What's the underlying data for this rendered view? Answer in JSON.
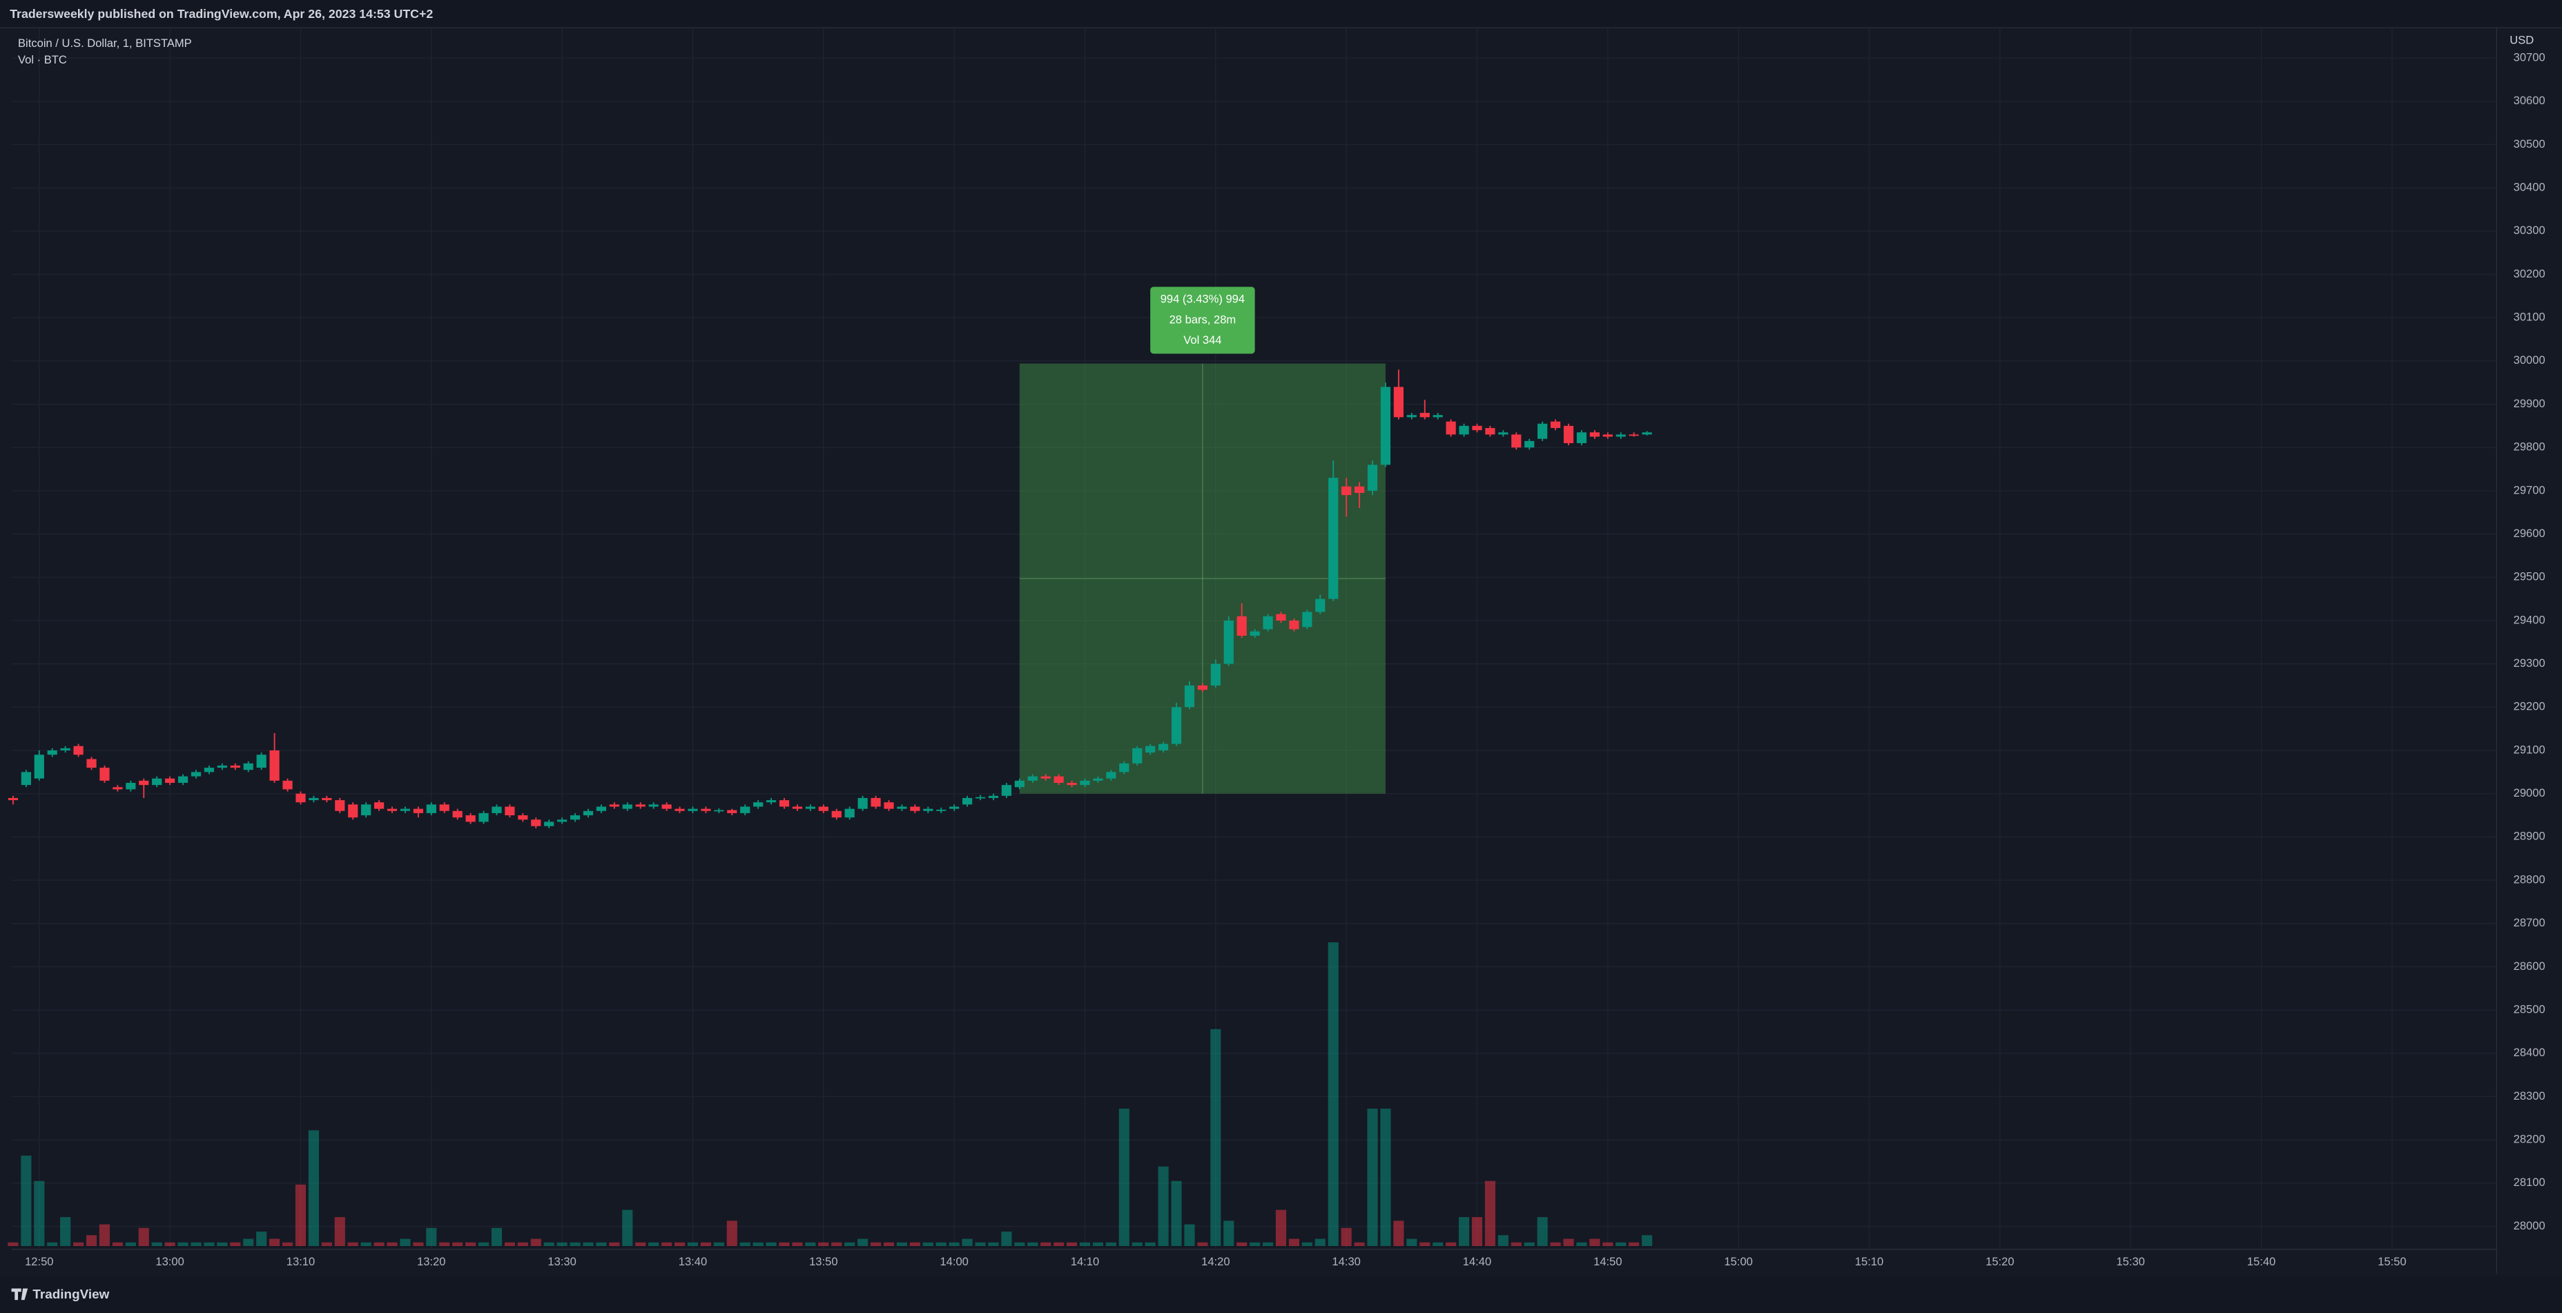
{
  "chart_data": {
    "type": "candlestick",
    "published_note": "Tradersweekly published on TradingView.com, Apr 26, 2023 14:53 UTC+2",
    "title": "Bitcoin / U.S. Dollar, 1, BITSTAMP",
    "currency_label": "USD",
    "footer": "TradingView",
    "up_color": "#089981",
    "down_color": "#f23645",
    "grid": true,
    "xlim": [
      "12:48",
      "15:58"
    ],
    "xticks": [
      "12:50",
      "13:00",
      "13:10",
      "13:20",
      "13:30",
      "13:40",
      "13:50",
      "14:00",
      "14:10",
      "14:20",
      "14:30",
      "14:40",
      "14:50",
      "15:00",
      "15:10",
      "15:20",
      "15:30",
      "15:40",
      "15:50"
    ],
    "ylim": [
      27947,
      30770
    ],
    "yticks": [
      28000,
      28100,
      28200,
      28300,
      28400,
      28500,
      28600,
      28700,
      28800,
      28900,
      29000,
      29100,
      29200,
      29300,
      29400,
      29500,
      29600,
      29700,
      29800,
      29900,
      30000,
      30100,
      30200,
      30300,
      30400,
      30500,
      30600,
      30700
    ],
    "x": [
      "12:48",
      "12:49",
      "12:50",
      "12:51",
      "12:52",
      "12:53",
      "12:54",
      "12:55",
      "12:56",
      "12:57",
      "12:58",
      "12:59",
      "13:00",
      "13:01",
      "13:02",
      "13:03",
      "13:04",
      "13:05",
      "13:06",
      "13:07",
      "13:08",
      "13:09",
      "13:10",
      "13:11",
      "13:12",
      "13:13",
      "13:14",
      "13:15",
      "13:16",
      "13:17",
      "13:18",
      "13:19",
      "13:20",
      "13:21",
      "13:22",
      "13:23",
      "13:24",
      "13:25",
      "13:26",
      "13:27",
      "13:28",
      "13:29",
      "13:30",
      "13:31",
      "13:32",
      "13:33",
      "13:34",
      "13:35",
      "13:36",
      "13:37",
      "13:38",
      "13:39",
      "13:40",
      "13:41",
      "13:42",
      "13:43",
      "13:44",
      "13:45",
      "13:46",
      "13:47",
      "13:48",
      "13:49",
      "13:50",
      "13:51",
      "13:52",
      "13:53",
      "13:54",
      "13:55",
      "13:56",
      "13:57",
      "13:58",
      "13:59",
      "14:00",
      "14:01",
      "14:02",
      "14:03",
      "14:04",
      "14:05",
      "14:06",
      "14:07",
      "14:08",
      "14:09",
      "14:10",
      "14:11",
      "14:12",
      "14:13",
      "14:14",
      "14:15",
      "14:16",
      "14:17",
      "14:18",
      "14:19",
      "14:20",
      "14:21",
      "14:22",
      "14:23",
      "14:24",
      "14:25",
      "14:26",
      "14:27",
      "14:28",
      "14:29",
      "14:30",
      "14:31",
      "14:32",
      "14:33",
      "14:34",
      "14:35",
      "14:36",
      "14:37",
      "14:38",
      "14:39",
      "14:40",
      "14:41",
      "14:42",
      "14:43",
      "14:44",
      "14:45",
      "14:46",
      "14:47",
      "14:48",
      "14:49",
      "14:50",
      "14:51",
      "14:52",
      "14:53"
    ],
    "ohlc": [
      [
        28990,
        28995,
        28975,
        28985
      ],
      [
        29020,
        29055,
        29015,
        29050
      ],
      [
        29035,
        29100,
        29030,
        29090
      ],
      [
        29090,
        29105,
        29085,
        29100
      ],
      [
        29100,
        29110,
        29095,
        29105
      ],
      [
        29110,
        29115,
        29085,
        29090
      ],
      [
        29080,
        29085,
        29055,
        29060
      ],
      [
        29060,
        29065,
        29025,
        29030
      ],
      [
        29015,
        29020,
        29005,
        29010
      ],
      [
        29010,
        29030,
        29005,
        29025
      ],
      [
        29030,
        29035,
        28990,
        29020
      ],
      [
        29020,
        29040,
        29015,
        29035
      ],
      [
        29035,
        29040,
        29020,
        29025
      ],
      [
        29025,
        29045,
        29020,
        29040
      ],
      [
        29040,
        29055,
        29035,
        29050
      ],
      [
        29050,
        29065,
        29045,
        29060
      ],
      [
        29060,
        29070,
        29055,
        29065
      ],
      [
        29065,
        29070,
        29055,
        29060
      ],
      [
        29055,
        29075,
        29050,
        29070
      ],
      [
        29060,
        29095,
        29055,
        29090
      ],
      [
        29100,
        29140,
        29025,
        29030
      ],
      [
        29030,
        29035,
        29005,
        29010
      ],
      [
        29000,
        29005,
        28975,
        28980
      ],
      [
        28985,
        28995,
        28980,
        28990
      ],
      [
        28990,
        28995,
        28980,
        28985
      ],
      [
        28985,
        28990,
        28955,
        28960
      ],
      [
        28975,
        28980,
        28940,
        28945
      ],
      [
        28950,
        28980,
        28945,
        28975
      ],
      [
        28980,
        28985,
        28960,
        28965
      ],
      [
        28965,
        28970,
        28955,
        28960
      ],
      [
        28960,
        28970,
        28955,
        28965
      ],
      [
        28965,
        28970,
        28945,
        28955
      ],
      [
        28955,
        28980,
        28950,
        28975
      ],
      [
        28975,
        28980,
        28955,
        28960
      ],
      [
        28960,
        28965,
        28940,
        28945
      ],
      [
        28950,
        28955,
        28930,
        28935
      ],
      [
        28935,
        28960,
        28930,
        28955
      ],
      [
        28955,
        28975,
        28950,
        28970
      ],
      [
        28970,
        28975,
        28945,
        28950
      ],
      [
        28950,
        28955,
        28935,
        28940
      ],
      [
        28940,
        28945,
        28920,
        28925
      ],
      [
        28925,
        28940,
        28920,
        28935
      ],
      [
        28935,
        28945,
        28930,
        28940
      ],
      [
        28940,
        28955,
        28935,
        28950
      ],
      [
        28950,
        28965,
        28945,
        28960
      ],
      [
        28960,
        28975,
        28955,
        28970
      ],
      [
        28975,
        28980,
        28965,
        28970
      ],
      [
        28965,
        28980,
        28960,
        28975
      ],
      [
        28975,
        28980,
        28965,
        28970
      ],
      [
        28970,
        28980,
        28965,
        28975
      ],
      [
        28975,
        28980,
        28960,
        28965
      ],
      [
        28965,
        28970,
        28955,
        28960
      ],
      [
        28960,
        28970,
        28955,
        28965
      ],
      [
        28965,
        28970,
        28955,
        28960
      ],
      [
        28960,
        28966,
        28955,
        28962
      ],
      [
        28962,
        28965,
        28950,
        28955
      ],
      [
        28955,
        28975,
        28950,
        28970
      ],
      [
        28970,
        28985,
        28965,
        28980
      ],
      [
        28980,
        28990,
        28975,
        28985
      ],
      [
        28985,
        28990,
        28965,
        28970
      ],
      [
        28970,
        28975,
        28960,
        28965
      ],
      [
        28965,
        28975,
        28960,
        28970
      ],
      [
        28970,
        28975,
        28955,
        28960
      ],
      [
        28960,
        28965,
        28940,
        28945
      ],
      [
        28945,
        28970,
        28940,
        28965
      ],
      [
        28965,
        28995,
        28960,
        28990
      ],
      [
        28990,
        28995,
        28965,
        28970
      ],
      [
        28980,
        28985,
        28960,
        28965
      ],
      [
        28965,
        28975,
        28960,
        28970
      ],
      [
        28970,
        28975,
        28955,
        28960
      ],
      [
        28960,
        28970,
        28955,
        28965
      ],
      [
        28960,
        28968,
        28955,
        28963
      ],
      [
        28965,
        28975,
        28960,
        28970
      ],
      [
        28975,
        28995,
        28970,
        28990
      ],
      [
        28990,
        28997,
        28985,
        28992
      ],
      [
        28990,
        29000,
        28985,
        28995
      ],
      [
        28995,
        29025,
        28990,
        29020
      ],
      [
        29015,
        29035,
        29010,
        29030
      ],
      [
        29030,
        29045,
        29025,
        29040
      ],
      [
        29040,
        29045,
        29030,
        29035
      ],
      [
        29040,
        29045,
        29020,
        29025
      ],
      [
        29025,
        29030,
        29015,
        29020
      ],
      [
        29020,
        29035,
        29015,
        29030
      ],
      [
        29030,
        29040,
        29025,
        29035
      ],
      [
        29035,
        29055,
        29030,
        29050
      ],
      [
        29050,
        29075,
        29045,
        29070
      ],
      [
        29070,
        29110,
        29065,
        29105
      ],
      [
        29095,
        29115,
        29090,
        29110
      ],
      [
        29100,
        29120,
        29095,
        29115
      ],
      [
        29115,
        29210,
        29110,
        29200
      ],
      [
        29200,
        29260,
        29195,
        29250
      ],
      [
        29250,
        29255,
        29235,
        29240
      ],
      [
        29250,
        29310,
        29245,
        29300
      ],
      [
        29300,
        29410,
        29295,
        29400
      ],
      [
        29410,
        29440,
        29360,
        29365
      ],
      [
        29365,
        29380,
        29360,
        29375
      ],
      [
        29380,
        29415,
        29375,
        29410
      ],
      [
        29415,
        29420,
        29395,
        29400
      ],
      [
        29400,
        29405,
        29375,
        29380
      ],
      [
        29385,
        29425,
        29380,
        29420
      ],
      [
        29420,
        29460,
        29415,
        29450
      ],
      [
        29450,
        29770,
        29445,
        29730
      ],
      [
        29710,
        29730,
        29640,
        29690
      ],
      [
        29710,
        29720,
        29660,
        29695
      ],
      [
        29700,
        29770,
        29690,
        29760
      ],
      [
        29760,
        29950,
        29755,
        29940
      ],
      [
        29940,
        29980,
        29865,
        29870
      ],
      [
        29870,
        29880,
        29865,
        29875
      ],
      [
        29880,
        29910,
        29865,
        29870
      ],
      [
        29870,
        29880,
        29865,
        29875
      ],
      [
        29860,
        29865,
        29825,
        29830
      ],
      [
        29830,
        29855,
        29825,
        29850
      ],
      [
        29850,
        29855,
        29835,
        29840
      ],
      [
        29845,
        29850,
        29825,
        29830
      ],
      [
        29830,
        29840,
        29825,
        29835
      ],
      [
        29830,
        29835,
        29795,
        29800
      ],
      [
        29800,
        29820,
        29795,
        29815
      ],
      [
        29820,
        29860,
        29815,
        29855
      ],
      [
        29860,
        29865,
        29840,
        29845
      ],
      [
        29850,
        29855,
        29805,
        29810
      ],
      [
        29810,
        29840,
        29805,
        29835
      ],
      [
        29835,
        29840,
        29820,
        29825
      ],
      [
        29830,
        29835,
        29820,
        29825
      ],
      [
        29825,
        29835,
        29820,
        29830
      ],
      [
        29830,
        29835,
        29825,
        29828
      ],
      [
        29830,
        29838,
        29828,
        29835
      ]
    ],
    "volume": {
      "label": "Vol · BTC",
      "up_color": "rgba(8,153,129,0.5)",
      "down_color": "rgba(242,54,69,0.5)",
      "values": [
        1,
        25,
        18,
        1,
        8,
        1,
        3,
        6,
        1,
        1,
        5,
        1,
        1,
        1,
        1,
        1,
        1,
        1,
        2,
        4,
        2,
        1,
        17,
        32,
        1,
        8,
        1,
        1,
        1,
        1,
        2,
        1,
        5,
        1,
        1,
        1,
        1,
        5,
        1,
        1,
        2,
        1,
        1,
        1,
        1,
        1,
        1,
        10,
        1,
        1,
        1,
        1,
        1,
        1,
        1,
        7,
        1,
        1,
        1,
        1,
        1,
        1,
        1,
        1,
        1,
        2,
        1,
        1,
        1,
        1,
        1,
        1,
        1,
        2,
        1,
        1,
        4,
        1,
        1,
        1,
        1,
        1,
        1,
        1,
        1,
        38,
        1,
        1,
        22,
        18,
        6,
        1,
        60,
        7,
        1,
        1,
        1,
        10,
        2,
        1,
        2,
        84,
        5,
        1,
        38,
        38,
        7,
        2,
        1,
        1,
        1,
        8,
        8,
        18,
        3,
        1,
        1,
        8,
        1,
        2,
        1,
        2,
        1,
        1,
        1,
        3
      ]
    },
    "range_box": {
      "from": "14:05",
      "to": "14:33",
      "low": 29000,
      "high": 29994,
      "color": "rgba(76,175,80,0.38)",
      "label_color": "#4caf50",
      "labels": [
        "994 (3.43%) 994",
        "28 bars, 28m",
        "Vol 344"
      ]
    }
  }
}
